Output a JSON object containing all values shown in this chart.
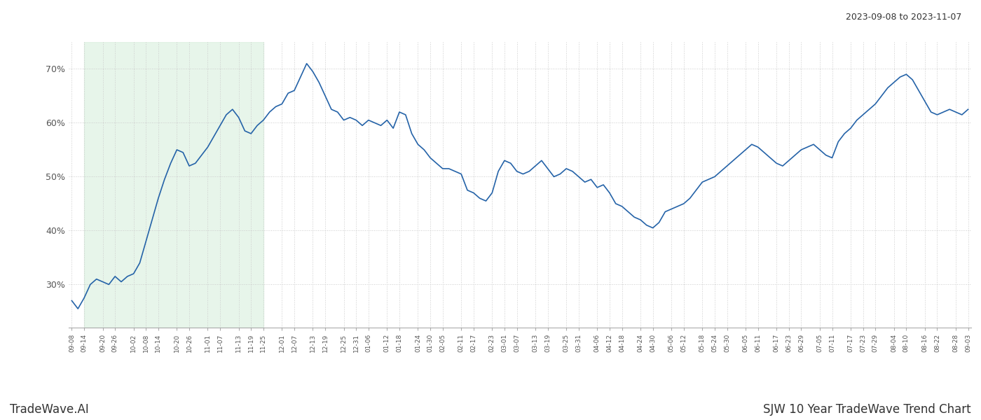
{
  "title_right": "2023-09-08 to 2023-11-07",
  "title_bottom_left": "TradeWave.AI",
  "title_bottom_right": "SJW 10 Year TradeWave Trend Chart",
  "line_color": "#2563a8",
  "line_width": 1.2,
  "highlight_color": "#d4edda",
  "highlight_alpha": 0.55,
  "background_color": "#ffffff",
  "grid_color": "#cccccc",
  "grid_linestyle": ":",
  "ytick_values": [
    30,
    40,
    50,
    60,
    70
  ],
  "x_labels": [
    "09-08",
    "09-14",
    "09-20",
    "09-26",
    "10-02",
    "10-08",
    "10-14",
    "10-20",
    "10-26",
    "11-01",
    "11-07",
    "11-13",
    "11-19",
    "11-25",
    "12-01",
    "12-07",
    "12-13",
    "12-19",
    "12-25",
    "12-31",
    "01-06",
    "01-12",
    "01-18",
    "01-24",
    "01-30",
    "02-05",
    "02-11",
    "02-17",
    "02-23",
    "03-01",
    "03-07",
    "03-13",
    "03-19",
    "03-25",
    "03-31",
    "04-06",
    "04-12",
    "04-18",
    "04-24",
    "04-30",
    "05-06",
    "05-12",
    "05-18",
    "05-24",
    "05-30",
    "06-05",
    "06-11",
    "06-17",
    "06-23",
    "06-29",
    "07-05",
    "07-11",
    "07-17",
    "07-23",
    "07-29",
    "08-04",
    "08-10",
    "08-16",
    "08-22",
    "08-28",
    "09-03"
  ],
  "y_values": [
    27.0,
    25.5,
    27.5,
    30.0,
    31.0,
    30.5,
    30.0,
    31.5,
    30.5,
    31.5,
    32.0,
    34.0,
    38.0,
    42.0,
    46.0,
    49.5,
    52.5,
    55.0,
    54.5,
    52.0,
    52.5,
    54.0,
    55.5,
    57.5,
    59.5,
    61.5,
    62.5,
    61.0,
    58.5,
    58.0,
    59.5,
    60.5,
    62.0,
    63.0,
    63.5,
    65.5,
    66.0,
    68.5,
    71.0,
    69.5,
    67.5,
    65.0,
    62.5,
    62.0,
    60.5,
    61.0,
    60.5,
    59.5,
    60.5,
    60.0,
    59.5,
    60.5,
    59.0,
    62.0,
    61.5,
    58.0,
    56.0,
    55.0,
    53.5,
    52.5,
    51.5,
    51.5,
    51.0,
    50.5,
    47.5,
    47.0,
    46.0,
    45.5,
    47.0,
    51.0,
    53.0,
    52.5,
    51.0,
    50.5,
    51.0,
    52.0,
    53.0,
    51.5,
    50.0,
    50.5,
    51.5,
    51.0,
    50.0,
    49.0,
    49.5,
    48.0,
    48.5,
    47.0,
    45.0,
    44.5,
    43.5,
    42.5,
    42.0,
    41.0,
    40.5,
    41.5,
    43.5,
    44.0,
    44.5,
    45.0,
    46.0,
    47.5,
    49.0,
    49.5,
    50.0,
    51.0,
    52.0,
    53.0,
    54.0,
    55.0,
    56.0,
    55.5,
    54.5,
    53.5,
    52.5,
    52.0,
    53.0,
    54.0,
    55.0,
    55.5,
    56.0,
    55.0,
    54.0,
    53.5,
    56.5,
    58.0,
    59.0,
    60.5,
    61.5,
    62.5,
    63.5,
    65.0,
    66.5,
    67.5,
    68.5,
    69.0,
    68.0,
    66.0,
    64.0,
    62.0,
    61.5,
    62.0,
    62.5,
    62.0,
    61.5,
    62.5
  ],
  "ylim": [
    22,
    75
  ],
  "figsize": [
    14.0,
    6.0
  ],
  "dpi": 100
}
